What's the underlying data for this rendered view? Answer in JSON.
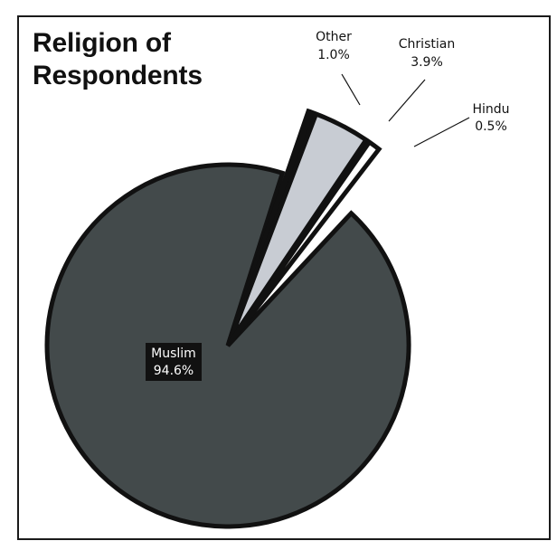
{
  "chart_data": {
    "type": "pie",
    "title_lines": [
      "Religion of",
      "Respondents"
    ],
    "slices": [
      {
        "label": "Muslim",
        "value": 94.6,
        "value_text": "94.6%",
        "color": "#434a4b",
        "exploded": false
      },
      {
        "label": "Hindu",
        "value": 0.5,
        "value_text": "0.5%",
        "color": "#434a4b",
        "exploded": true
      },
      {
        "label": "Christian",
        "value": 3.9,
        "value_text": "3.9%",
        "color": "#c8ccd3",
        "exploded": true
      },
      {
        "label": "Other",
        "value": 1.0,
        "value_text": "1.0%",
        "color": "#ffffff",
        "exploded": true
      }
    ],
    "legend": "none"
  }
}
